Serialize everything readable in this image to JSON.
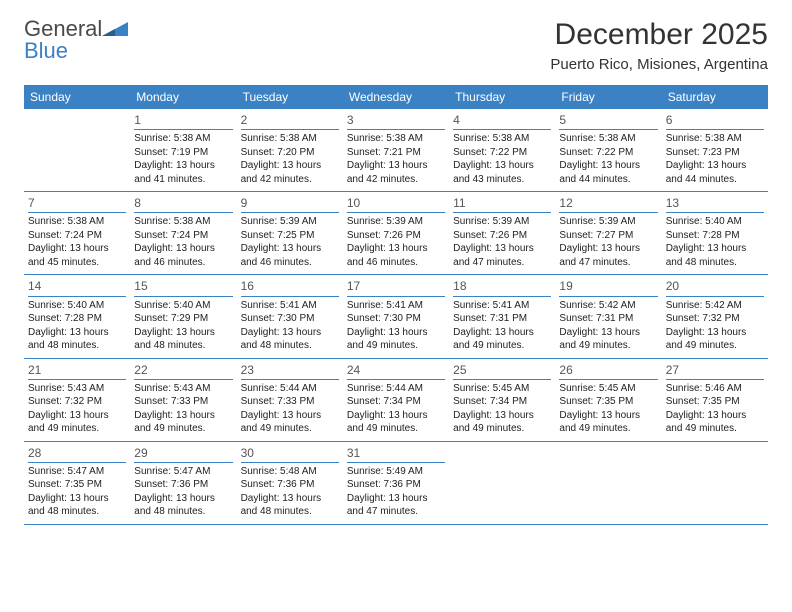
{
  "brand": {
    "word1": "General",
    "word2": "Blue"
  },
  "title": "December 2025",
  "location": "Puerto Rico, Misiones, Argentina",
  "colors": {
    "accent": "#3b82c4",
    "bg": "#ffffff",
    "text": "#222222"
  },
  "dayNames": [
    "Sunday",
    "Monday",
    "Tuesday",
    "Wednesday",
    "Thursday",
    "Friday",
    "Saturday"
  ],
  "weeks": [
    [
      null,
      {
        "n": "1",
        "sr": "Sunrise: 5:38 AM",
        "ss": "Sunset: 7:19 PM",
        "d1": "Daylight: 13 hours",
        "d2": "and 41 minutes."
      },
      {
        "n": "2",
        "sr": "Sunrise: 5:38 AM",
        "ss": "Sunset: 7:20 PM",
        "d1": "Daylight: 13 hours",
        "d2": "and 42 minutes."
      },
      {
        "n": "3",
        "sr": "Sunrise: 5:38 AM",
        "ss": "Sunset: 7:21 PM",
        "d1": "Daylight: 13 hours",
        "d2": "and 42 minutes."
      },
      {
        "n": "4",
        "sr": "Sunrise: 5:38 AM",
        "ss": "Sunset: 7:22 PM",
        "d1": "Daylight: 13 hours",
        "d2": "and 43 minutes."
      },
      {
        "n": "5",
        "sr": "Sunrise: 5:38 AM",
        "ss": "Sunset: 7:22 PM",
        "d1": "Daylight: 13 hours",
        "d2": "and 44 minutes."
      },
      {
        "n": "6",
        "sr": "Sunrise: 5:38 AM",
        "ss": "Sunset: 7:23 PM",
        "d1": "Daylight: 13 hours",
        "d2": "and 44 minutes."
      }
    ],
    [
      {
        "n": "7",
        "sr": "Sunrise: 5:38 AM",
        "ss": "Sunset: 7:24 PM",
        "d1": "Daylight: 13 hours",
        "d2": "and 45 minutes."
      },
      {
        "n": "8",
        "sr": "Sunrise: 5:38 AM",
        "ss": "Sunset: 7:24 PM",
        "d1": "Daylight: 13 hours",
        "d2": "and 46 minutes."
      },
      {
        "n": "9",
        "sr": "Sunrise: 5:39 AM",
        "ss": "Sunset: 7:25 PM",
        "d1": "Daylight: 13 hours",
        "d2": "and 46 minutes."
      },
      {
        "n": "10",
        "sr": "Sunrise: 5:39 AM",
        "ss": "Sunset: 7:26 PM",
        "d1": "Daylight: 13 hours",
        "d2": "and 46 minutes."
      },
      {
        "n": "11",
        "sr": "Sunrise: 5:39 AM",
        "ss": "Sunset: 7:26 PM",
        "d1": "Daylight: 13 hours",
        "d2": "and 47 minutes."
      },
      {
        "n": "12",
        "sr": "Sunrise: 5:39 AM",
        "ss": "Sunset: 7:27 PM",
        "d1": "Daylight: 13 hours",
        "d2": "and 47 minutes."
      },
      {
        "n": "13",
        "sr": "Sunrise: 5:40 AM",
        "ss": "Sunset: 7:28 PM",
        "d1": "Daylight: 13 hours",
        "d2": "and 48 minutes."
      }
    ],
    [
      {
        "n": "14",
        "sr": "Sunrise: 5:40 AM",
        "ss": "Sunset: 7:28 PM",
        "d1": "Daylight: 13 hours",
        "d2": "and 48 minutes."
      },
      {
        "n": "15",
        "sr": "Sunrise: 5:40 AM",
        "ss": "Sunset: 7:29 PM",
        "d1": "Daylight: 13 hours",
        "d2": "and 48 minutes."
      },
      {
        "n": "16",
        "sr": "Sunrise: 5:41 AM",
        "ss": "Sunset: 7:30 PM",
        "d1": "Daylight: 13 hours",
        "d2": "and 48 minutes."
      },
      {
        "n": "17",
        "sr": "Sunrise: 5:41 AM",
        "ss": "Sunset: 7:30 PM",
        "d1": "Daylight: 13 hours",
        "d2": "and 49 minutes."
      },
      {
        "n": "18",
        "sr": "Sunrise: 5:41 AM",
        "ss": "Sunset: 7:31 PM",
        "d1": "Daylight: 13 hours",
        "d2": "and 49 minutes."
      },
      {
        "n": "19",
        "sr": "Sunrise: 5:42 AM",
        "ss": "Sunset: 7:31 PM",
        "d1": "Daylight: 13 hours",
        "d2": "and 49 minutes."
      },
      {
        "n": "20",
        "sr": "Sunrise: 5:42 AM",
        "ss": "Sunset: 7:32 PM",
        "d1": "Daylight: 13 hours",
        "d2": "and 49 minutes."
      }
    ],
    [
      {
        "n": "21",
        "sr": "Sunrise: 5:43 AM",
        "ss": "Sunset: 7:32 PM",
        "d1": "Daylight: 13 hours",
        "d2": "and 49 minutes."
      },
      {
        "n": "22",
        "sr": "Sunrise: 5:43 AM",
        "ss": "Sunset: 7:33 PM",
        "d1": "Daylight: 13 hours",
        "d2": "and 49 minutes."
      },
      {
        "n": "23",
        "sr": "Sunrise: 5:44 AM",
        "ss": "Sunset: 7:33 PM",
        "d1": "Daylight: 13 hours",
        "d2": "and 49 minutes."
      },
      {
        "n": "24",
        "sr": "Sunrise: 5:44 AM",
        "ss": "Sunset: 7:34 PM",
        "d1": "Daylight: 13 hours",
        "d2": "and 49 minutes."
      },
      {
        "n": "25",
        "sr": "Sunrise: 5:45 AM",
        "ss": "Sunset: 7:34 PM",
        "d1": "Daylight: 13 hours",
        "d2": "and 49 minutes."
      },
      {
        "n": "26",
        "sr": "Sunrise: 5:45 AM",
        "ss": "Sunset: 7:35 PM",
        "d1": "Daylight: 13 hours",
        "d2": "and 49 minutes."
      },
      {
        "n": "27",
        "sr": "Sunrise: 5:46 AM",
        "ss": "Sunset: 7:35 PM",
        "d1": "Daylight: 13 hours",
        "d2": "and 49 minutes."
      }
    ],
    [
      {
        "n": "28",
        "sr": "Sunrise: 5:47 AM",
        "ss": "Sunset: 7:35 PM",
        "d1": "Daylight: 13 hours",
        "d2": "and 48 minutes."
      },
      {
        "n": "29",
        "sr": "Sunrise: 5:47 AM",
        "ss": "Sunset: 7:36 PM",
        "d1": "Daylight: 13 hours",
        "d2": "and 48 minutes."
      },
      {
        "n": "30",
        "sr": "Sunrise: 5:48 AM",
        "ss": "Sunset: 7:36 PM",
        "d1": "Daylight: 13 hours",
        "d2": "and 48 minutes."
      },
      {
        "n": "31",
        "sr": "Sunrise: 5:49 AM",
        "ss": "Sunset: 7:36 PM",
        "d1": "Daylight: 13 hours",
        "d2": "and 47 minutes."
      },
      null,
      null,
      null
    ]
  ]
}
